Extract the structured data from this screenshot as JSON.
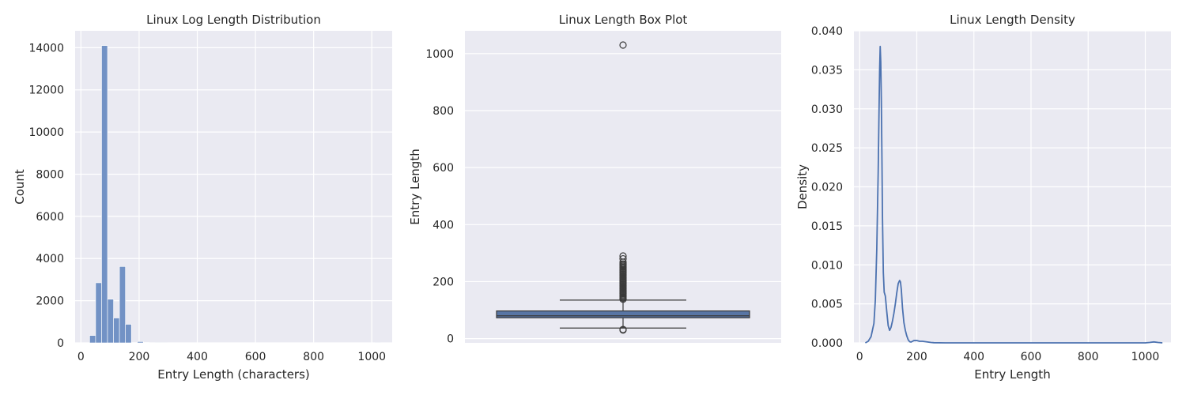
{
  "colors": {
    "hist_bar": "#7292c5",
    "box_fill": "#5875a4",
    "box_line": "#3a3a3a",
    "density_line": "#4c72b0"
  },
  "chart_data": [
    {
      "type": "bar",
      "title": "Linux Log Length Distribution",
      "xlabel": "Entry Length (characters)",
      "ylabel": "Count",
      "xlim": [
        -20,
        1070
      ],
      "ylim": [
        0,
        14800
      ],
      "xticks": [
        0,
        200,
        400,
        600,
        800,
        1000
      ],
      "yticks": [
        0,
        2000,
        4000,
        6000,
        8000,
        10000,
        12000,
        14000
      ],
      "bin_width": 20.5,
      "bins": [
        {
          "x0": 30,
          "value": 350
        },
        {
          "x0": 50.5,
          "value": 2850
        },
        {
          "x0": 71,
          "value": 14100
        },
        {
          "x0": 91.5,
          "value": 2070
        },
        {
          "x0": 112,
          "value": 1180
        },
        {
          "x0": 132.5,
          "value": 3620
        },
        {
          "x0": 153,
          "value": 880
        },
        {
          "x0": 173.5,
          "value": 15
        },
        {
          "x0": 194,
          "value": 60
        },
        {
          "x0": 214.5,
          "value": 20
        },
        {
          "x0": 235,
          "value": 8
        },
        {
          "x0": 255.5,
          "value": 5
        },
        {
          "x0": 276,
          "value": 2
        },
        {
          "x0": 1010,
          "value": 4
        }
      ]
    },
    {
      "type": "box",
      "title": "Linux Length Box Plot",
      "ylabel": "Entry Length",
      "ylim": [
        -15,
        1080
      ],
      "yticks": [
        0,
        200,
        400,
        600,
        800,
        1000
      ],
      "q1": 73,
      "median": 80,
      "q3": 97,
      "whisker_low": 37,
      "whisker_high": 135,
      "outliers": [
        30,
        32,
        1030,
        290,
        280,
        268,
        262,
        258,
        254,
        250,
        246,
        242,
        238,
        234,
        230,
        226,
        222,
        218,
        214,
        210,
        206,
        202,
        198,
        194,
        190,
        186,
        182,
        178,
        174,
        170,
        166,
        162,
        158,
        154,
        150,
        146,
        142,
        138
      ]
    },
    {
      "type": "line",
      "title": "Linux Length Density",
      "xlabel": "Entry Length",
      "ylabel": "Density",
      "xlim": [
        -20,
        1090
      ],
      "ylim": [
        0,
        0.04
      ],
      "xticks": [
        0,
        200,
        400,
        600,
        800,
        1000
      ],
      "yticks": [
        0.0,
        0.005,
        0.01,
        0.015,
        0.02,
        0.025,
        0.03,
        0.035,
        0.04
      ],
      "ytick_labels": [
        "0.000",
        "0.005",
        "0.010",
        "0.015",
        "0.020",
        "0.025",
        "0.030",
        "0.035",
        "0.040"
      ],
      "x": [
        20,
        30,
        40,
        50,
        55,
        60,
        65,
        68,
        70,
        72,
        74,
        76,
        78,
        80,
        83,
        86,
        90,
        95,
        100,
        105,
        110,
        115,
        120,
        125,
        130,
        135,
        140,
        143,
        146,
        150,
        155,
        160,
        165,
        170,
        175,
        180,
        190,
        200,
        210,
        220,
        230,
        240,
        250,
        260,
        300,
        400,
        600,
        800,
        1000,
        1015,
        1030,
        1045,
        1060
      ],
      "y": [
        0.0,
        0.0002,
        0.0008,
        0.0025,
        0.0055,
        0.012,
        0.022,
        0.03,
        0.035,
        0.038,
        0.036,
        0.031,
        0.024,
        0.016,
        0.009,
        0.0065,
        0.006,
        0.004,
        0.0022,
        0.0016,
        0.002,
        0.0028,
        0.0038,
        0.005,
        0.0064,
        0.0076,
        0.008,
        0.0078,
        0.0068,
        0.0045,
        0.0026,
        0.0016,
        0.0009,
        0.0004,
        0.00015,
        0.0001,
        0.0003,
        0.0003,
        0.0002,
        0.0002,
        0.00015,
        0.0001,
        5e-05,
        2e-05,
        0.0,
        0.0,
        0.0,
        0.0,
        0.0,
        5e-05,
        0.00012,
        5e-05,
        0.0
      ]
    }
  ]
}
